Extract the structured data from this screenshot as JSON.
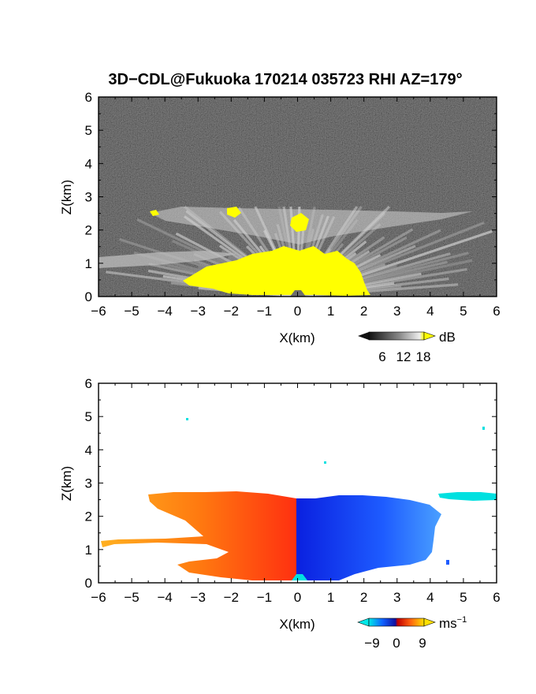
{
  "title": "3D−CDL@Fukuoka 170214 035723 RHI AZ=179°",
  "chart_data": [
    {
      "type": "heatmap",
      "name": "reflectivity-panel",
      "xlabel": "X(km)",
      "ylabel": "Z(km)",
      "xlim": [
        -6,
        6
      ],
      "ylim": [
        0,
        6
      ],
      "xticks": [
        "−6",
        "−5",
        "−4",
        "−3",
        "−2",
        "−1",
        "0",
        "1",
        "2",
        "3",
        "4",
        "5",
        "6"
      ],
      "yticks": [
        "0",
        "1",
        "2",
        "3",
        "4",
        "5",
        "6"
      ],
      "colorbar": {
        "unit": "dB",
        "ticks": [
          "6",
          "12",
          "18"
        ]
      },
      "regions": [
        {
          "label": "strong-echo-core",
          "x": [
            -3.5,
            1.5
          ],
          "z": [
            0,
            1.3
          ],
          "level": "above 18"
        },
        {
          "label": "upper-layer-echo",
          "x": [
            -4.5,
            2.5
          ],
          "z": [
            2.2,
            2.7
          ],
          "level": "6-18"
        },
        {
          "label": "low-level-layer",
          "x": [
            -6,
            -2.5
          ],
          "z": [
            0.9,
            1.2
          ],
          "level": "6-18"
        }
      ]
    },
    {
      "type": "heatmap",
      "name": "doppler-velocity-panel",
      "xlabel": "X(km)",
      "ylabel": "Z(km)",
      "xlim": [
        -6,
        6
      ],
      "ylim": [
        0,
        6
      ],
      "xticks": [
        "−6",
        "−5",
        "−4",
        "−3",
        "−2",
        "−1",
        "0",
        "1",
        "2",
        "3",
        "4",
        "5",
        "6"
      ],
      "yticks": [
        "0",
        "1",
        "2",
        "3",
        "4",
        "5",
        "6"
      ],
      "colorbar": {
        "unit": "ms",
        "unit_exp": "−1",
        "ticks": [
          "−9",
          "0",
          "9"
        ]
      },
      "regions": [
        {
          "label": "positive-velocity-region",
          "x": [
            -6,
            0
          ],
          "z": [
            0,
            2.7
          ],
          "value": 6
        },
        {
          "label": "negative-velocity-region",
          "x": [
            0,
            4.5
          ],
          "z": [
            0,
            2.5
          ],
          "value": -7
        },
        {
          "label": "upper-right-layer",
          "x": [
            4.2,
            6
          ],
          "z": [
            2.5,
            2.7
          ],
          "value": -12
        }
      ]
    }
  ],
  "colors": {
    "echo_core": "#ffff00",
    "background_noise": "#1e1e1e",
    "velocity_pos": "#ff5a1a",
    "velocity_neg": "#1a3cff",
    "cyan": "#00e0e0"
  }
}
